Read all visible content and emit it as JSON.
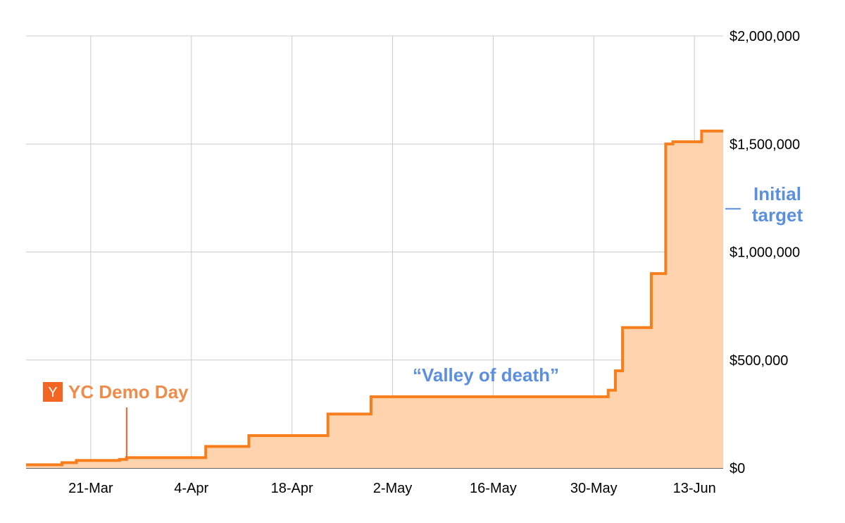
{
  "chart_data": {
    "type": "area",
    "step": true,
    "title": "",
    "xlabel": "",
    "ylabel": "",
    "x_tick_labels": [
      "21-Mar",
      "4-Apr",
      "18-Apr",
      "2-May",
      "16-May",
      "30-May",
      "13-Jun"
    ],
    "x_tick_dates": [
      "2013-03-21",
      "2013-04-04",
      "2013-04-18",
      "2013-05-02",
      "2013-05-16",
      "2013-05-30",
      "2013-06-13"
    ],
    "xlim": [
      "2013-03-12",
      "2013-06-17"
    ],
    "y_tick_labels": [
      "$0",
      "$500,000",
      "$1,000,000",
      "$1,500,000",
      "$2,000,000"
    ],
    "y_ticks": [
      0,
      500000,
      1000000,
      1500000,
      2000000
    ],
    "ylim": [
      0,
      2000000
    ],
    "y_axis_side": "right",
    "grid": true,
    "series": [
      {
        "name": "",
        "color": "#f77e1c",
        "fill_color": "#ffd3ad",
        "points": [
          {
            "x": "2013-03-12",
            "y": 15000
          },
          {
            "x": "2013-03-17",
            "y": 25000
          },
          {
            "x": "2013-03-19",
            "y": 35000
          },
          {
            "x": "2013-03-25",
            "y": 40000
          },
          {
            "x": "2013-03-26",
            "y": 48000
          },
          {
            "x": "2013-04-06",
            "y": 100000
          },
          {
            "x": "2013-04-12",
            "y": 150000
          },
          {
            "x": "2013-04-23",
            "y": 250000
          },
          {
            "x": "2013-04-29",
            "y": 330000
          },
          {
            "x": "2013-06-01",
            "y": 360000
          },
          {
            "x": "2013-06-02",
            "y": 450000
          },
          {
            "x": "2013-06-03",
            "y": 650000
          },
          {
            "x": "2013-06-07",
            "y": 900000
          },
          {
            "x": "2013-06-09",
            "y": 1500000
          },
          {
            "x": "2013-06-10",
            "y": 1510000
          },
          {
            "x": "2013-06-14",
            "y": 1560000
          },
          {
            "x": "2013-06-17",
            "y": 1560000
          }
        ]
      }
    ],
    "annotations": {
      "valley": {
        "text": "“Valley of death”",
        "color": "#5b8fe0"
      },
      "initial_target": {
        "line1": "Initial",
        "line2": "target",
        "value": 1200000,
        "color": "#5b8fe0"
      },
      "demo_day": {
        "text": "YC Demo Day",
        "badge": "Y",
        "date": "2013-03-26",
        "color": "#f08c4a",
        "badge_color": "#f26522"
      }
    }
  }
}
